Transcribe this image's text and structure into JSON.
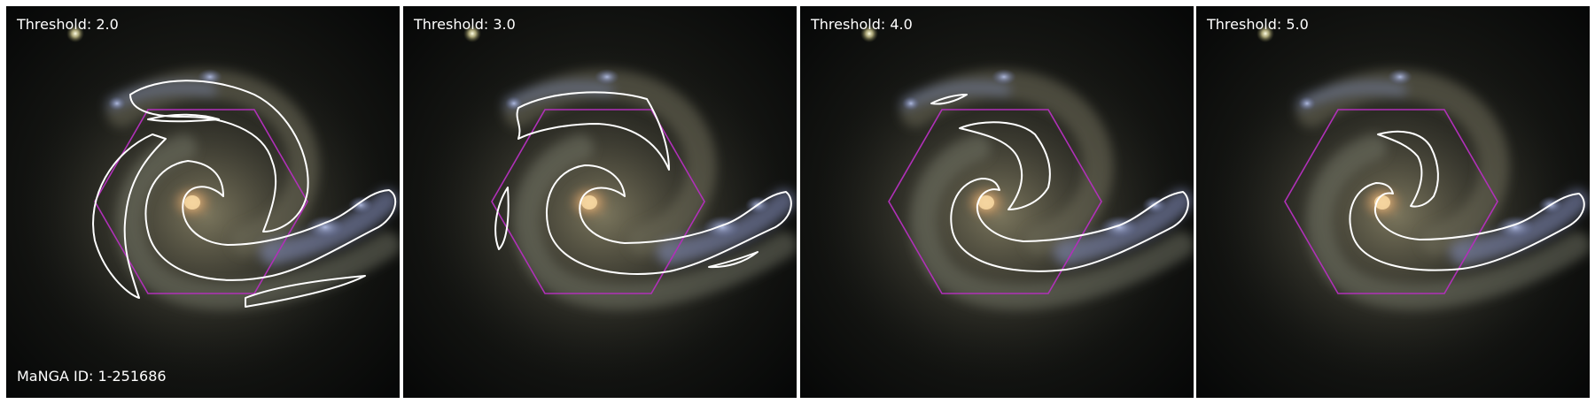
{
  "figure": {
    "panels": [
      {
        "label": "Threshold: 2.0"
      },
      {
        "label": "Threshold: 3.0"
      },
      {
        "label": "Threshold: 4.0"
      },
      {
        "label": "Threshold: 5.0"
      }
    ],
    "manga_id": "MaNGA ID: 1-251686"
  },
  "colors": {
    "background": "#ffffff",
    "sky": "#0b0c0b",
    "contour": "#ffffff",
    "hexagon": "#b030b8",
    "label_text": "#ffffff",
    "galaxy_core": "#e0b07a",
    "galaxy_arm_blue": "#9aa8d8"
  }
}
